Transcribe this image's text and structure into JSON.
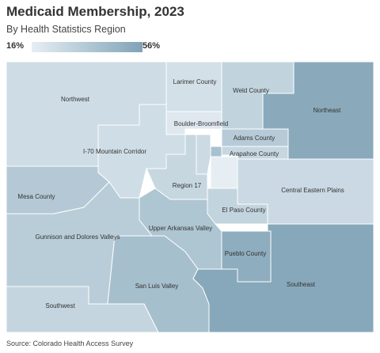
{
  "title": "Medicaid Membership, 2023",
  "subtitle": "By Health Statistics Region",
  "legend": {
    "min_label": "16%",
    "max_label": "56%",
    "color_min": "#e6eef3",
    "color_max": "#7fa3b6"
  },
  "regions": {
    "northwest": "Northwest",
    "larimer": "Larimer County",
    "weld": "Weld County",
    "northeast": "Northeast",
    "boulder": "Boulder-Broomfield",
    "adams": "Adams County",
    "arapahoe": "Arapahoe County",
    "i70": "I-70 Mountain Corridor",
    "region17": "Region 17",
    "central_eastern": "Central Eastern Plains",
    "mesa": "Mesa County",
    "el_paso": "El Paso County",
    "upper_arkansas": "Upper Arkansas Valley",
    "gunnison": "Gunnison and Dolores Valleys",
    "pueblo": "Pueblo County",
    "san_luis": "San Luis Valley",
    "southeast": "Southeast",
    "southwest": "Southwest"
  },
  "colors": {
    "northwest": "#cddce5",
    "larimer": "#d3e0e8",
    "weld": "#c1d4de",
    "northeast": "#8aaabc",
    "boulder": "#dfe8ee",
    "adams": "#b6cbd7",
    "arapahoe": "#c6d7e1",
    "denver": "#a9c1cf",
    "jefferson": "#cbdae3",
    "douglas": "#e6eef3",
    "i70": "#cfdde6",
    "region17": "#c6d7e0",
    "central_eastern": "#cad9e3",
    "mesa": "#b4c9d5",
    "el_paso": "#c2d4de",
    "upper_arkansas": "#aec5d2",
    "gunnison": "#b9cdd8",
    "pueblo": "#8eadbf",
    "san_luis": "#a5bfcd",
    "southeast": "#87a8ba",
    "southwest": "#c4d5df"
  },
  "source": "Source: Colorado Health Access Survey"
}
